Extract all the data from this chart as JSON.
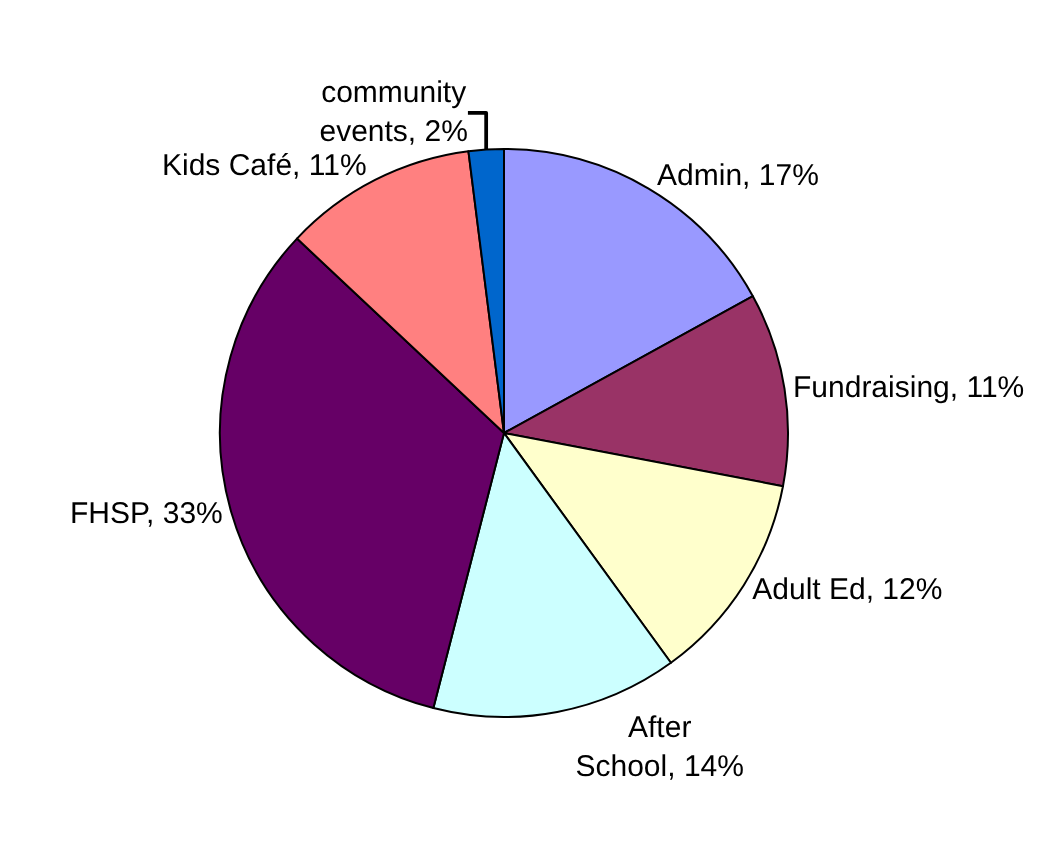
{
  "chart_data": {
    "type": "pie",
    "categories": [
      "Admin",
      "Fundraising",
      "Adult Ed",
      "After School",
      "FHSP",
      "Kids Café",
      "community events"
    ],
    "values": [
      17,
      11,
      12,
      14,
      33,
      11,
      2
    ],
    "colors": [
      "#9999ff",
      "#993366",
      "#ffffcc",
      "#ccffff",
      "#660066",
      "#ff8080",
      "#0066cc"
    ],
    "value_labels": [
      "17%",
      "11%",
      "12%",
      "14%",
      "33%",
      "11%",
      "2%"
    ],
    "legend": false
  }
}
